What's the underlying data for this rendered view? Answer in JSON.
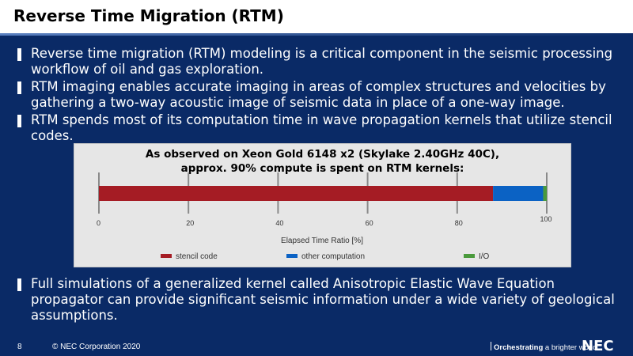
{
  "slide": {
    "title": "Reverse Time Migration (RTM)",
    "bullets_top": [
      "Reverse time migration (RTM) modeling is a critical component in the seismic processing workflow of oil and gas exploration.",
      "RTM imaging enables accurate imaging in areas of complex structures and velocities by gathering a two-way acoustic image of seismic data in place of a one-way image.",
      "RTM spends most of its computation time in wave propagation kernels that utilize stencil codes."
    ],
    "bullets_bottom": [
      "Full simulations of a generalized kernel called Anisotropic Elastic Wave Equation propagator can provide significant seismic information under a wide variety of geological assumptions."
    ]
  },
  "figure": {
    "title_line1": "As observed on Xeon Gold 6148 x2 (Skylake 2.40GHz 40C),",
    "title_line2": "approx. 90% compute is spent on RTM kernels:"
  },
  "chart_data": {
    "type": "bar",
    "orientation": "horizontal",
    "stacked": true,
    "xlabel": "Elapsed Time Ratio [%]",
    "xlim": [
      0,
      100
    ],
    "ticks": [
      0,
      20,
      40,
      60,
      80,
      100
    ],
    "series": [
      {
        "name": "stencil code",
        "value": 88,
        "color": "#a51c24"
      },
      {
        "name": "other computation",
        "value": 11.2,
        "color": "#0b62c4"
      },
      {
        "name": "I/O",
        "value": 0.8,
        "color": "#4a9a3c"
      }
    ],
    "legend_position": "bottom"
  },
  "footer": {
    "page_number": "8",
    "copyright": "© NEC Corporation 2020",
    "tagline_bold": "Orchestrating",
    "tagline_rest": " a brighter world",
    "logo": "NEC"
  }
}
